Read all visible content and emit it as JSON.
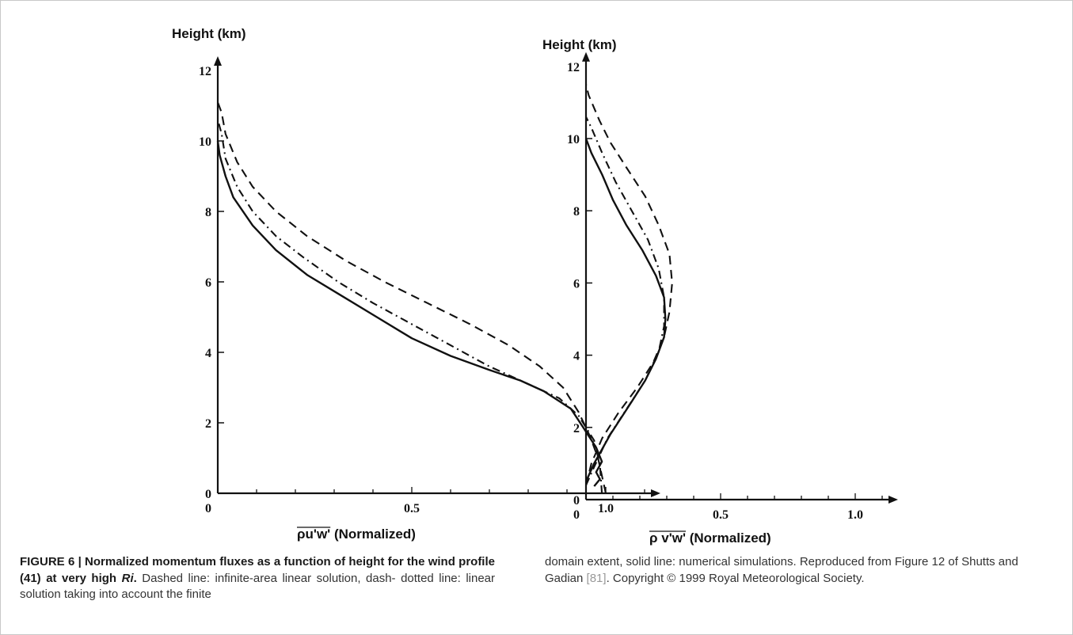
{
  "chart_data": [
    {
      "type": "line",
      "ylabel": "Height (km)",
      "xlabel_over": "ρu'w'",
      "xlabel_rest": " (Normalized)",
      "x_ticks": [
        "0",
        "0.5",
        "1.0"
      ],
      "y_ticks": [
        "0",
        "2",
        "4",
        "6",
        "8",
        "10",
        "12"
      ],
      "xlim": [
        0,
        1.1
      ],
      "ylim": [
        0,
        12
      ],
      "series": [
        {
          "style": "dashed",
          "points": [
            [
              1.0,
              0
            ],
            [
              0.99,
              0.5
            ],
            [
              0.98,
              1.0
            ],
            [
              0.96,
              1.6
            ],
            [
              0.93,
              2.3
            ],
            [
              0.89,
              3.0
            ],
            [
              0.83,
              3.6
            ],
            [
              0.75,
              4.2
            ],
            [
              0.65,
              4.8
            ],
            [
              0.54,
              5.4
            ],
            [
              0.43,
              6.0
            ],
            [
              0.33,
              6.6
            ],
            [
              0.23,
              7.3
            ],
            [
              0.15,
              8.0
            ],
            [
              0.09,
              8.7
            ],
            [
              0.05,
              9.4
            ],
            [
              0.02,
              10.2
            ],
            [
              0.01,
              10.8
            ],
            [
              0.0,
              11.1
            ]
          ]
        },
        {
          "style": "dash-dot",
          "points": [
            [
              0.99,
              0
            ],
            [
              0.985,
              0.8
            ],
            [
              0.97,
              1.5
            ],
            [
              0.93,
              2.2
            ],
            [
              0.88,
              2.7
            ],
            [
              0.8,
              3.1
            ],
            [
              0.7,
              3.6
            ],
            [
              0.6,
              4.2
            ],
            [
              0.5,
              4.8
            ],
            [
              0.4,
              5.4
            ],
            [
              0.31,
              6.0
            ],
            [
              0.22,
              6.7
            ],
            [
              0.15,
              7.3
            ],
            [
              0.09,
              8.0
            ],
            [
              0.05,
              8.7
            ],
            [
              0.02,
              9.5
            ],
            [
              0.01,
              10.2
            ],
            [
              0.0,
              10.6
            ]
          ]
        },
        {
          "style": "solid",
          "points": [
            [
              0.97,
              0.2
            ],
            [
              0.985,
              0.4
            ],
            [
              0.975,
              0.6
            ],
            [
              0.99,
              0.9
            ],
            [
              0.975,
              1.3
            ],
            [
              0.94,
              1.9
            ],
            [
              0.91,
              2.4
            ],
            [
              0.84,
              2.9
            ],
            [
              0.78,
              3.2
            ],
            [
              0.7,
              3.5
            ],
            [
              0.6,
              3.9
            ],
            [
              0.5,
              4.4
            ],
            [
              0.41,
              5.0
            ],
            [
              0.32,
              5.6
            ],
            [
              0.23,
              6.2
            ],
            [
              0.15,
              6.9
            ],
            [
              0.09,
              7.6
            ],
            [
              0.04,
              8.4
            ],
            [
              0.02,
              9.0
            ],
            [
              0.005,
              9.6
            ],
            [
              0.0,
              10.0
            ]
          ]
        }
      ]
    },
    {
      "type": "line",
      "ylabel": "Height (km)",
      "xlabel_over": "ρ v'w'",
      "xlabel_rest": " (Normalized)",
      "x_ticks": [
        "0",
        "0.5",
        "1.0"
      ],
      "y_ticks": [
        "0",
        "2",
        "4",
        "6",
        "8",
        "10",
        "12"
      ],
      "xlim": [
        0,
        1.1
      ],
      "ylim": [
        0,
        12
      ],
      "series": [
        {
          "style": "dashed",
          "points": [
            [
              0.0,
              0.4
            ],
            [
              0.02,
              1.0
            ],
            [
              0.06,
              1.7
            ],
            [
              0.12,
              2.4
            ],
            [
              0.19,
              3.1
            ],
            [
              0.25,
              3.8
            ],
            [
              0.29,
              4.5
            ],
            [
              0.31,
              5.2
            ],
            [
              0.32,
              6.0
            ],
            [
              0.31,
              6.8
            ],
            [
              0.27,
              7.6
            ],
            [
              0.22,
              8.4
            ],
            [
              0.15,
              9.2
            ],
            [
              0.09,
              9.9
            ],
            [
              0.05,
              10.5
            ],
            [
              0.01,
              11.2
            ],
            [
              0.0,
              11.5
            ]
          ]
        },
        {
          "style": "dash-dot",
          "points": [
            [
              0.0,
              0.4
            ],
            [
              0.03,
              0.9
            ],
            [
              0.08,
              1.7
            ],
            [
              0.15,
              2.5
            ],
            [
              0.22,
              3.3
            ],
            [
              0.27,
              4.1
            ],
            [
              0.29,
              4.8
            ],
            [
              0.29,
              5.6
            ],
            [
              0.27,
              6.4
            ],
            [
              0.23,
              7.2
            ],
            [
              0.17,
              8.0
            ],
            [
              0.11,
              8.8
            ],
            [
              0.06,
              9.6
            ],
            [
              0.02,
              10.3
            ],
            [
              0.0,
              10.6
            ]
          ]
        },
        {
          "style": "solid",
          "points": [
            [
              0.0,
              0.5
            ],
            [
              0.03,
              1.0
            ],
            [
              0.09,
              1.8
            ],
            [
              0.16,
              2.6
            ],
            [
              0.22,
              3.3
            ],
            [
              0.26,
              3.9
            ],
            [
              0.29,
              4.5
            ],
            [
              0.295,
              5.0
            ],
            [
              0.29,
              5.6
            ],
            [
              0.26,
              6.2
            ],
            [
              0.21,
              6.9
            ],
            [
              0.15,
              7.6
            ],
            [
              0.1,
              8.3
            ],
            [
              0.06,
              9.0
            ],
            [
              0.02,
              9.6
            ],
            [
              0.0,
              10.0
            ]
          ]
        }
      ]
    }
  ],
  "caption": {
    "bold_text": "FIGURE 6 | Normalized momentum fluxes as a function of height for the wind profile (41) at very high ",
    "bold_ri": "Ri",
    "bold_end": ".",
    "text_left": " Dashed line: infinite-area linear solution, dash- dotted line: linear solution taking into account the finite",
    "text_right_1": "domain extent, solid line: numerical simulations. Reproduced from Figure 12 of Shutts and Gadian ",
    "ref": "[81]",
    "text_right_2": ". Copyright © 1999 Royal Meteorological Society."
  }
}
